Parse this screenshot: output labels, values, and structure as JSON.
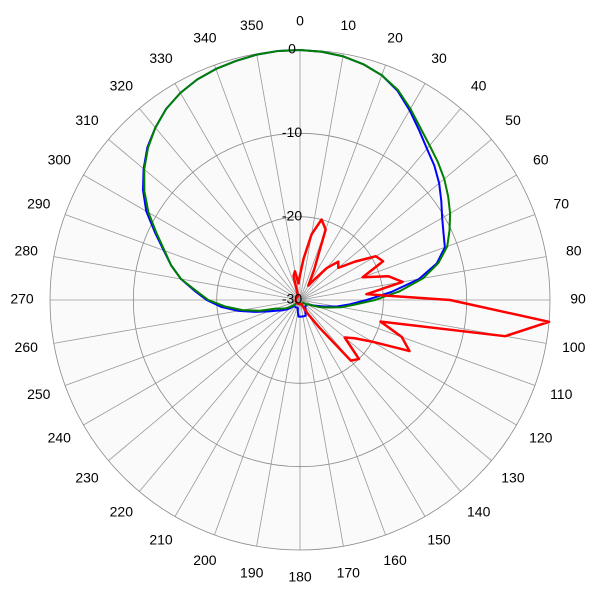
{
  "chart_data": {
    "type": "polar",
    "rlim": [
      -30,
      0
    ],
    "rticks": [
      0,
      -10,
      -20,
      -30
    ],
    "thetaticks": [
      0,
      10,
      20,
      30,
      40,
      50,
      60,
      70,
      80,
      90,
      100,
      110,
      120,
      130,
      140,
      150,
      160,
      170,
      180,
      190,
      200,
      210,
      220,
      230,
      240,
      250,
      260,
      270,
      280,
      290,
      300,
      310,
      320,
      330,
      340,
      350
    ],
    "series": [
      {
        "color": "#0000ff",
        "theta": [
          0,
          5,
          10,
          15,
          20,
          25,
          30,
          35,
          40,
          45,
          50,
          55,
          60,
          65,
          70,
          75,
          80,
          85,
          90,
          95,
          100,
          105,
          110,
          115,
          120,
          125,
          130,
          135,
          140,
          145,
          150,
          155,
          160,
          165,
          170,
          175,
          180,
          185,
          190,
          195,
          200,
          205,
          210,
          215,
          220,
          225,
          230,
          235,
          240,
          245,
          250,
          255,
          260,
          265,
          270,
          275,
          280,
          285,
          290,
          295,
          300,
          305,
          310,
          315,
          320,
          325,
          330,
          335,
          340,
          345,
          350,
          355
        ],
        "values": [
          0,
          -0.1,
          -0.3,
          -0.7,
          -1.3,
          -2.3,
          -3.7,
          -5.1,
          -6.3,
          -7.2,
          -8.2,
          -9.3,
          -10.3,
          -11,
          -11.5,
          -13,
          -15.5,
          -19,
          -22,
          -24,
          -25.5,
          -27,
          -28,
          -28.5,
          -29,
          -29,
          -29,
          -29,
          -29,
          -29,
          -28.5,
          -28.5,
          -28,
          -28,
          -28,
          -28,
          -28,
          -28,
          -28.5,
          -29,
          -29,
          -29,
          -29,
          -29,
          -29,
          -29,
          -28.5,
          -28,
          -27.5,
          -27,
          -26,
          -24.5,
          -22.5,
          -20.5,
          -18.8,
          -17.3,
          -15.5,
          -14,
          -12.6,
          -10.8,
          -8.7,
          -7,
          -5.5,
          -4.1,
          -3,
          -2,
          -1.3,
          -0.8,
          -0.5,
          -0.3,
          -0.1,
          0
        ]
      },
      {
        "color": "#008000",
        "theta": [
          0,
          5,
          10,
          15,
          20,
          25,
          30,
          35,
          40,
          45,
          50,
          55,
          60,
          65,
          70,
          75,
          80,
          85,
          90,
          95,
          100,
          105,
          110,
          115,
          120,
          125,
          130,
          135,
          140,
          145,
          150,
          155,
          160,
          165,
          170,
          175,
          180,
          185,
          190,
          195,
          200,
          205,
          210,
          215,
          220,
          225,
          230,
          235,
          240,
          245,
          250,
          255,
          260,
          265,
          270,
          275,
          280,
          285,
          290,
          295,
          300,
          305,
          310,
          315,
          320,
          325,
          330,
          335,
          340,
          345,
          350,
          355
        ],
        "values": [
          0,
          -0.1,
          -0.3,
          -0.7,
          -1.3,
          -2.2,
          -3.5,
          -4.8,
          -5.8,
          -6.6,
          -7.4,
          -8.3,
          -9.2,
          -10.2,
          -11.2,
          -12.8,
          -15,
          -18,
          -21,
          -23.5,
          -25,
          -26.5,
          -27.5,
          -28.5,
          -29,
          -29,
          -29.5,
          -29.5,
          -29.5,
          -29.5,
          -29.5,
          -29.5,
          -29.5,
          -29.5,
          -29.5,
          -29.5,
          -29.5,
          -29.5,
          -29.5,
          -29.5,
          -29.5,
          -29.5,
          -29.5,
          -29.5,
          -29.5,
          -29.5,
          -29,
          -28.5,
          -28,
          -27.5,
          -27,
          -25,
          -23,
          -21,
          -19,
          -17.5,
          -15.5,
          -14,
          -12.7,
          -11,
          -9,
          -7.2,
          -5.6,
          -4.2,
          -3,
          -2,
          -1.3,
          -0.8,
          -0.5,
          -0.3,
          -0.1,
          0
        ]
      },
      {
        "color": "#ff0000",
        "theta": [
          0,
          5,
          10,
          15,
          20,
          25,
          30,
          35,
          40,
          45,
          50,
          55,
          60,
          65,
          70,
          75,
          80,
          85,
          90,
          95,
          100,
          105,
          110,
          115,
          120,
          125,
          130,
          135,
          140,
          145,
          150,
          155,
          160,
          165,
          170,
          175,
          180,
          185,
          190,
          195,
          200,
          205,
          210,
          215,
          220,
          225,
          230,
          235,
          240,
          245,
          250,
          255,
          260,
          265,
          270,
          275,
          280,
          285,
          290,
          295,
          300,
          305,
          310,
          315,
          320,
          325,
          330,
          335,
          340,
          345,
          350,
          355
        ],
        "values": [
          -27,
          -25,
          -22,
          -20,
          -21,
          -26,
          -28,
          -27,
          -25,
          -23.5,
          -24,
          -22,
          -19.5,
          -19,
          -22,
          -19,
          -17.5,
          -22,
          -12,
          0,
          -5,
          -20,
          -17,
          -15.5,
          -20,
          -22,
          -23,
          -20,
          -20.5,
          -26,
          -28,
          -29,
          -29.5,
          -29.5,
          -29.5,
          -29.5,
          -29.5,
          -29.5,
          -29.5,
          -29.5,
          -29.5,
          -29.5,
          -29.5,
          -29.5,
          -29.5,
          -29.5,
          -29.5,
          -29.5,
          -29.5,
          -29.5,
          -29.5,
          -29.5,
          -29.5,
          -29.5,
          -29.5,
          -29.5,
          -29.5,
          -29.5,
          -29.5,
          -29.5,
          -29.5,
          -29.5,
          -29.5,
          -29.5,
          -29.5,
          -29.5,
          -29.5,
          -29.5,
          -29,
          -27,
          -26.5,
          -28
        ]
      }
    ]
  }
}
